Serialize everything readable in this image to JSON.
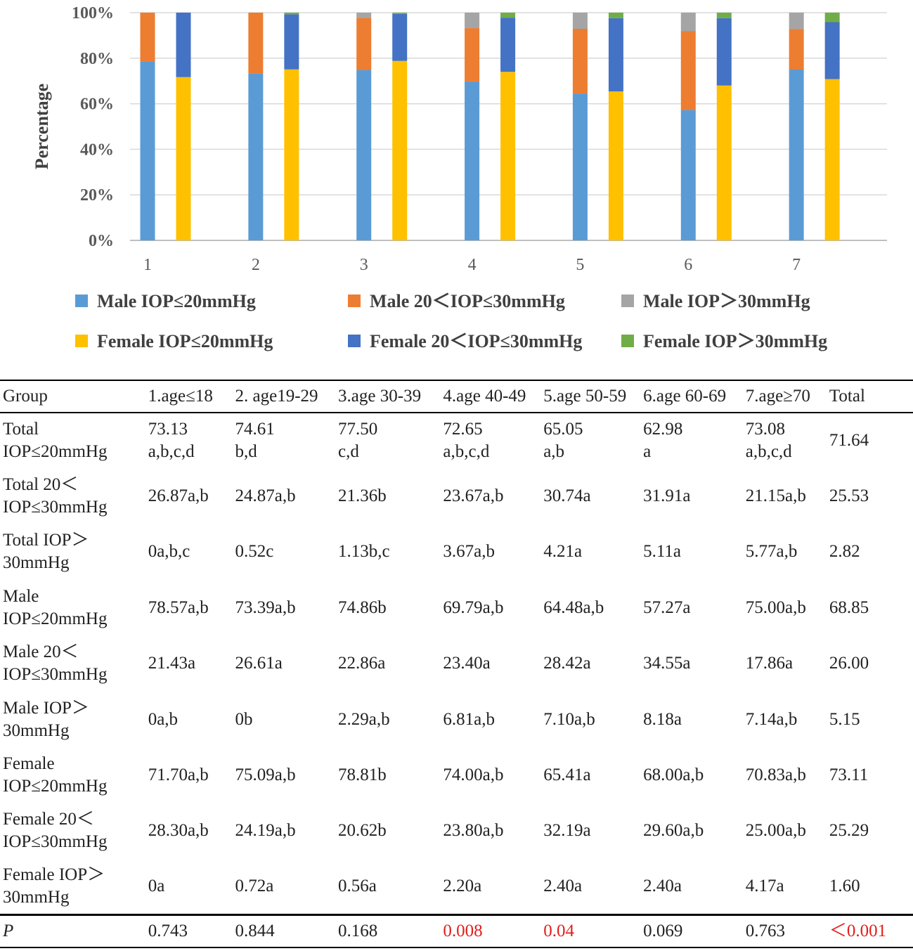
{
  "chart_data": {
    "type": "bar",
    "stacked": true,
    "categories": [
      "1",
      "2",
      "3",
      "4",
      "5",
      "6",
      "7"
    ],
    "ylabel": "Percentage",
    "ylim": [
      0,
      100
    ],
    "yticks": [
      "0%",
      "20%",
      "40%",
      "60%",
      "80%",
      "100%"
    ],
    "legend_position": "bottom",
    "groups": [
      {
        "name": "Male",
        "series": [
          {
            "name": "Male IOP≤20mmHg",
            "color": "#5b9bd5",
            "values": [
              78.57,
              73.39,
              74.86,
              69.79,
              64.48,
              57.27,
              75.0
            ]
          },
          {
            "name": "Male 20＜IOP≤30mmHg",
            "color": "#ed7d31",
            "values": [
              21.43,
              26.61,
              22.86,
              23.4,
              28.42,
              34.55,
              17.86
            ]
          },
          {
            "name": "Male IOP＞30mmHg",
            "color": "#a5a5a5",
            "values": [
              0,
              0,
              2.29,
              6.81,
              7.1,
              8.18,
              7.14
            ]
          }
        ]
      },
      {
        "name": "Female",
        "series": [
          {
            "name": "Female IOP≤20mmHg",
            "color": "#ffc000",
            "values": [
              71.7,
              75.09,
              78.81,
              74.0,
              65.41,
              68.0,
              70.83
            ]
          },
          {
            "name": "Female 20＜IOP≤30mmHg",
            "color": "#4472c4",
            "values": [
              28.3,
              24.19,
              20.62,
              23.8,
              32.19,
              29.6,
              25.0
            ]
          },
          {
            "name": "Female IOP＞30mmHg",
            "color": "#70ad47",
            "values": [
              0,
              0.72,
              0.56,
              2.2,
              2.4,
              2.4,
              4.17
            ]
          }
        ]
      }
    ]
  },
  "table": {
    "headers": [
      "Group",
      "1.age≤18",
      "2. age19-29",
      "3.age 30-39",
      "4.age 40-49",
      "5.age 50-59",
      "6.age 60-69",
      "7.age≥70",
      "Total"
    ],
    "rows": [
      {
        "label": [
          "Total",
          "IOP≤20mmHg"
        ],
        "cells": [
          [
            "73.13",
            "a,b,c,d"
          ],
          [
            "74.61",
            "b,d"
          ],
          [
            "77.50",
            "c,d"
          ],
          [
            "72.65",
            "a,b,c,d"
          ],
          [
            "65.05",
            "a,b"
          ],
          [
            "62.98",
            "a"
          ],
          [
            "73.08",
            "a,b,c,d"
          ],
          [
            "71.64"
          ]
        ]
      },
      {
        "label": [
          "Total 20＜",
          "IOP≤30mmHg"
        ],
        "cells": [
          [
            "26.87a,b"
          ],
          [
            "24.87a,b"
          ],
          [
            "21.36b"
          ],
          [
            "23.67a,b"
          ],
          [
            "30.74a"
          ],
          [
            "31.91a"
          ],
          [
            "21.15a,b"
          ],
          [
            "25.53"
          ]
        ]
      },
      {
        "label": [
          "Total IOP＞",
          "30mmHg"
        ],
        "cells": [
          [
            "0a,b,c"
          ],
          [
            "0.52c"
          ],
          [
            "1.13b,c"
          ],
          [
            "3.67a,b"
          ],
          [
            "4.21a"
          ],
          [
            "5.11a"
          ],
          [
            "5.77a,b"
          ],
          [
            "2.82"
          ]
        ]
      },
      {
        "label": [
          "Male",
          "IOP≤20mmHg"
        ],
        "cells": [
          [
            "78.57a,b"
          ],
          [
            "73.39a,b"
          ],
          [
            "74.86b"
          ],
          [
            "69.79a,b"
          ],
          [
            "64.48a,b"
          ],
          [
            "57.27a"
          ],
          [
            "75.00a,b"
          ],
          [
            "68.85"
          ]
        ]
      },
      {
        "label": [
          "Male 20＜",
          "IOP≤30mmHg"
        ],
        "cells": [
          [
            "21.43a"
          ],
          [
            "26.61a"
          ],
          [
            "22.86a"
          ],
          [
            "23.40a"
          ],
          [
            "28.42a"
          ],
          [
            "34.55a"
          ],
          [
            "17.86a"
          ],
          [
            "26.00"
          ]
        ]
      },
      {
        "label": [
          "Male IOP＞",
          "30mmHg"
        ],
        "cells": [
          [
            "0a,b"
          ],
          [
            "0b"
          ],
          [
            "2.29a,b"
          ],
          [
            "6.81a,b"
          ],
          [
            "7.10a,b"
          ],
          [
            "8.18a"
          ],
          [
            "7.14a,b"
          ],
          [
            "5.15"
          ]
        ]
      },
      {
        "label": [
          "Female",
          "IOP≤20mmHg"
        ],
        "cells": [
          [
            "71.70a,b"
          ],
          [
            "75.09a,b"
          ],
          [
            "78.81b"
          ],
          [
            "74.00a,b"
          ],
          [
            "65.41a"
          ],
          [
            "68.00a,b"
          ],
          [
            "70.83a,b"
          ],
          [
            "73.11"
          ]
        ]
      },
      {
        "label": [
          "Female 20＜",
          "IOP≤30mmHg"
        ],
        "cells": [
          [
            "28.30a,b"
          ],
          [
            "24.19a,b"
          ],
          [
            "20.62b"
          ],
          [
            "23.80a,b"
          ],
          [
            "32.19a"
          ],
          [
            "29.60a,b"
          ],
          [
            "25.00a,b"
          ],
          [
            "25.29"
          ]
        ]
      },
      {
        "label": [
          "Female IOP＞",
          "30mmHg"
        ],
        "cells": [
          [
            "0a"
          ],
          [
            "0.72a"
          ],
          [
            "0.56a"
          ],
          [
            "2.20a"
          ],
          [
            "2.40a"
          ],
          [
            "2.40a"
          ],
          [
            "4.17a"
          ],
          [
            "1.60"
          ]
        ]
      }
    ],
    "p_row": {
      "label": "P",
      "cells": [
        {
          "text": "0.743",
          "significant": false
        },
        {
          "text": "0.844",
          "significant": false
        },
        {
          "text": "0.168",
          "significant": false
        },
        {
          "text": "0.008",
          "significant": true
        },
        {
          "text": "0.04",
          "significant": true
        },
        {
          "text": "0.069",
          "significant": false
        },
        {
          "text": "0.763",
          "significant": false
        },
        {
          "text": "＜0.001",
          "significant": true
        }
      ],
      "significant_color": "#e0201c"
    }
  }
}
